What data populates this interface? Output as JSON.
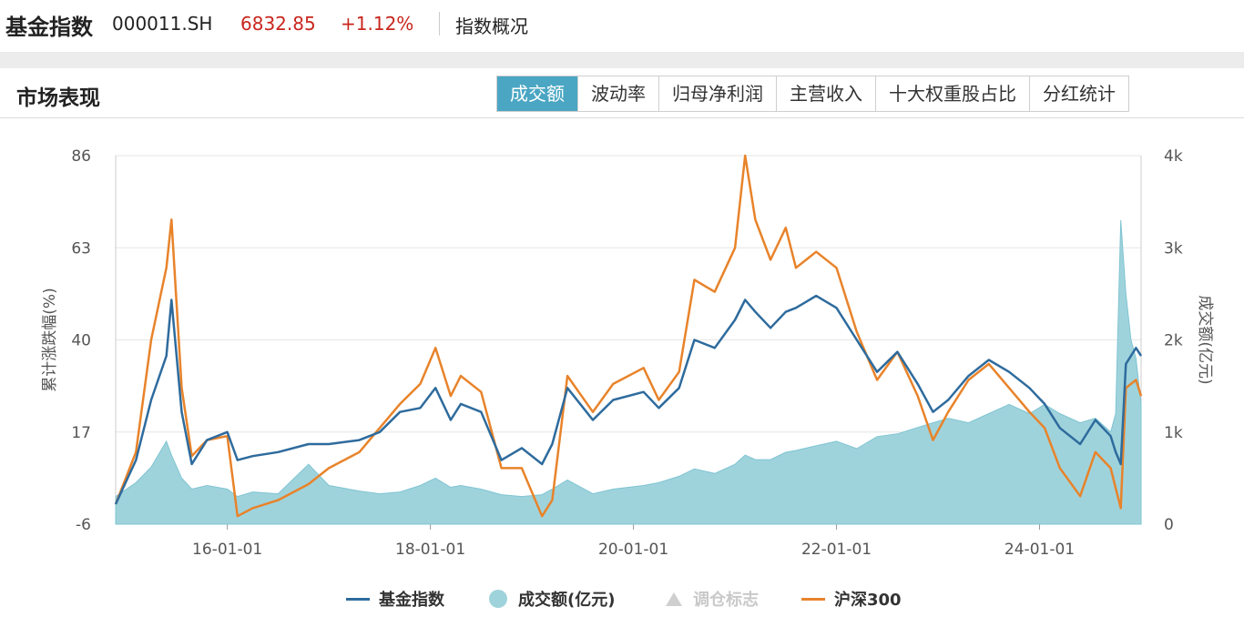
{
  "header": {
    "title": "基金指数",
    "code": "000011.SH",
    "price": "6832.85",
    "change": "+1.12%",
    "link": "指数概况"
  },
  "section": {
    "title": "市场表现"
  },
  "tabs": [
    {
      "label": "成交额",
      "active": true
    },
    {
      "label": "波动率",
      "active": false
    },
    {
      "label": "归母净利润",
      "active": false
    },
    {
      "label": "主营收入",
      "active": false
    },
    {
      "label": "十大权重股占比",
      "active": false
    },
    {
      "label": "分红统计",
      "active": false
    }
  ],
  "colors": {
    "fund_index": "#2e6b9d",
    "hs300": "#e8832a",
    "volume": "#9fd3dc",
    "volume_line": "#7fc4d2",
    "price_up": "#c8261d",
    "tab_active": "#4aa6c3"
  },
  "legend": [
    {
      "key": "fund",
      "label": "基金指数",
      "type": "line",
      "color": "#2e6b9d"
    },
    {
      "key": "volume",
      "label": "成交额(亿元)",
      "type": "dot",
      "color": "#9fd3dc"
    },
    {
      "key": "rebalance",
      "label": "调仓标志",
      "type": "triangle",
      "color": "#cfcfcf",
      "disabled": true
    },
    {
      "key": "hs300",
      "label": "沪深300",
      "type": "line",
      "color": "#e8832a"
    }
  ],
  "chart_data": {
    "type": "line",
    "ylabel_left": "累计涨跌幅(%)",
    "ylabel_right": "成交额(亿元)",
    "left_axis": {
      "min": -6,
      "max": 86,
      "ticks": [
        86,
        63,
        40,
        17,
        -6
      ]
    },
    "right_axis": {
      "min": 0,
      "max": 4000,
      "ticks": [
        0,
        1000,
        2000,
        3000,
        4000
      ],
      "tick_labels": [
        "0",
        "1k",
        "2k",
        "3k",
        "4k"
      ]
    },
    "x_axis": {
      "min": 2014.9,
      "max": 2025.0,
      "ticks": [
        2016.0,
        2018.0,
        2020.0,
        2022.0,
        2024.0
      ],
      "tick_labels": [
        "16-01-01",
        "18-01-01",
        "20-01-01",
        "22-01-01",
        "24-01-01"
      ]
    },
    "grid": "horizontal",
    "legend_position": "bottom",
    "series": [
      {
        "name": "基金指数",
        "kind": "line",
        "axis": "left",
        "x": [
          2014.9,
          2015.1,
          2015.25,
          2015.4,
          2015.45,
          2015.55,
          2015.65,
          2015.8,
          2016.0,
          2016.1,
          2016.25,
          2016.5,
          2016.8,
          2017.0,
          2017.3,
          2017.5,
          2017.7,
          2017.9,
          2018.05,
          2018.2,
          2018.3,
          2018.5,
          2018.7,
          2018.9,
          2019.1,
          2019.2,
          2019.35,
          2019.6,
          2019.8,
          2020.1,
          2020.25,
          2020.45,
          2020.6,
          2020.8,
          2021.0,
          2021.1,
          2021.2,
          2021.35,
          2021.5,
          2021.6,
          2021.8,
          2022.0,
          2022.2,
          2022.4,
          2022.6,
          2022.8,
          2022.95,
          2023.1,
          2023.3,
          2023.5,
          2023.7,
          2023.9,
          2024.05,
          2024.2,
          2024.4,
          2024.55,
          2024.7,
          2024.75,
          2024.8,
          2024.85,
          2024.95,
          2025.0
        ],
        "y": [
          -1,
          10,
          25,
          36,
          50,
          22,
          9,
          15,
          17,
          10,
          11,
          12,
          14,
          14,
          15,
          17,
          22,
          23,
          28,
          20,
          24,
          22,
          10,
          13,
          9,
          14,
          28,
          20,
          25,
          27,
          23,
          28,
          40,
          38,
          45,
          50,
          47,
          43,
          47,
          48,
          51,
          48,
          40,
          32,
          37,
          29,
          22,
          25,
          31,
          35,
          32,
          28,
          24,
          18,
          14,
          20,
          16,
          12,
          9,
          34,
          38,
          36
        ]
      },
      {
        "name": "沪深300",
        "kind": "line",
        "axis": "left",
        "x": [
          2014.9,
          2015.1,
          2015.25,
          2015.4,
          2015.45,
          2015.55,
          2015.65,
          2015.8,
          2016.0,
          2016.1,
          2016.25,
          2016.5,
          2016.8,
          2017.0,
          2017.3,
          2017.5,
          2017.7,
          2017.9,
          2018.05,
          2018.2,
          2018.3,
          2018.5,
          2018.7,
          2018.9,
          2019.1,
          2019.2,
          2019.35,
          2019.6,
          2019.8,
          2020.1,
          2020.25,
          2020.45,
          2020.6,
          2020.8,
          2021.0,
          2021.1,
          2021.2,
          2021.35,
          2021.5,
          2021.6,
          2021.8,
          2022.0,
          2022.2,
          2022.4,
          2022.6,
          2022.8,
          2022.95,
          2023.1,
          2023.3,
          2023.5,
          2023.7,
          2023.9,
          2024.05,
          2024.2,
          2024.4,
          2024.55,
          2024.7,
          2024.75,
          2024.8,
          2024.85,
          2024.95,
          2025.0
        ],
        "y": [
          -1,
          12,
          40,
          58,
          70,
          28,
          11,
          15,
          16,
          -4,
          -2,
          0,
          4,
          8,
          12,
          18,
          24,
          29,
          38,
          26,
          31,
          27,
          8,
          8,
          -4,
          0,
          31,
          22,
          29,
          33,
          25,
          32,
          55,
          52,
          63,
          86,
          70,
          60,
          68,
          58,
          62,
          58,
          42,
          30,
          37,
          26,
          15,
          22,
          30,
          34,
          28,
          22,
          18,
          8,
          1,
          12,
          8,
          3,
          -2,
          28,
          30,
          26
        ]
      },
      {
        "name": "成交额(亿元)",
        "kind": "area",
        "axis": "right",
        "x": [
          2014.9,
          2015.1,
          2015.25,
          2015.4,
          2015.45,
          2015.55,
          2015.65,
          2015.8,
          2016.0,
          2016.1,
          2016.25,
          2016.5,
          2016.8,
          2017.0,
          2017.3,
          2017.5,
          2017.7,
          2017.9,
          2018.05,
          2018.2,
          2018.3,
          2018.5,
          2018.7,
          2018.9,
          2019.1,
          2019.2,
          2019.35,
          2019.6,
          2019.8,
          2020.1,
          2020.25,
          2020.45,
          2020.6,
          2020.8,
          2021.0,
          2021.1,
          2021.2,
          2021.35,
          2021.5,
          2021.6,
          2021.8,
          2022.0,
          2022.2,
          2022.4,
          2022.6,
          2022.8,
          2022.95,
          2023.1,
          2023.3,
          2023.5,
          2023.7,
          2023.9,
          2024.05,
          2024.2,
          2024.4,
          2024.55,
          2024.7,
          2024.75,
          2024.8,
          2024.85,
          2024.9,
          2024.95,
          2025.0
        ],
        "y": [
          300,
          450,
          620,
          900,
          750,
          500,
          380,
          420,
          380,
          300,
          350,
          330,
          650,
          420,
          360,
          330,
          350,
          420,
          500,
          400,
          420,
          380,
          320,
          300,
          320,
          380,
          480,
          330,
          380,
          420,
          450,
          520,
          600,
          550,
          650,
          750,
          700,
          700,
          780,
          800,
          850,
          900,
          820,
          950,
          980,
          1050,
          1100,
          1150,
          1100,
          1200,
          1300,
          1200,
          1300,
          1200,
          1100,
          1150,
          1000,
          1200,
          3300,
          2500,
          2000,
          1800,
          1300
        ]
      }
    ]
  }
}
